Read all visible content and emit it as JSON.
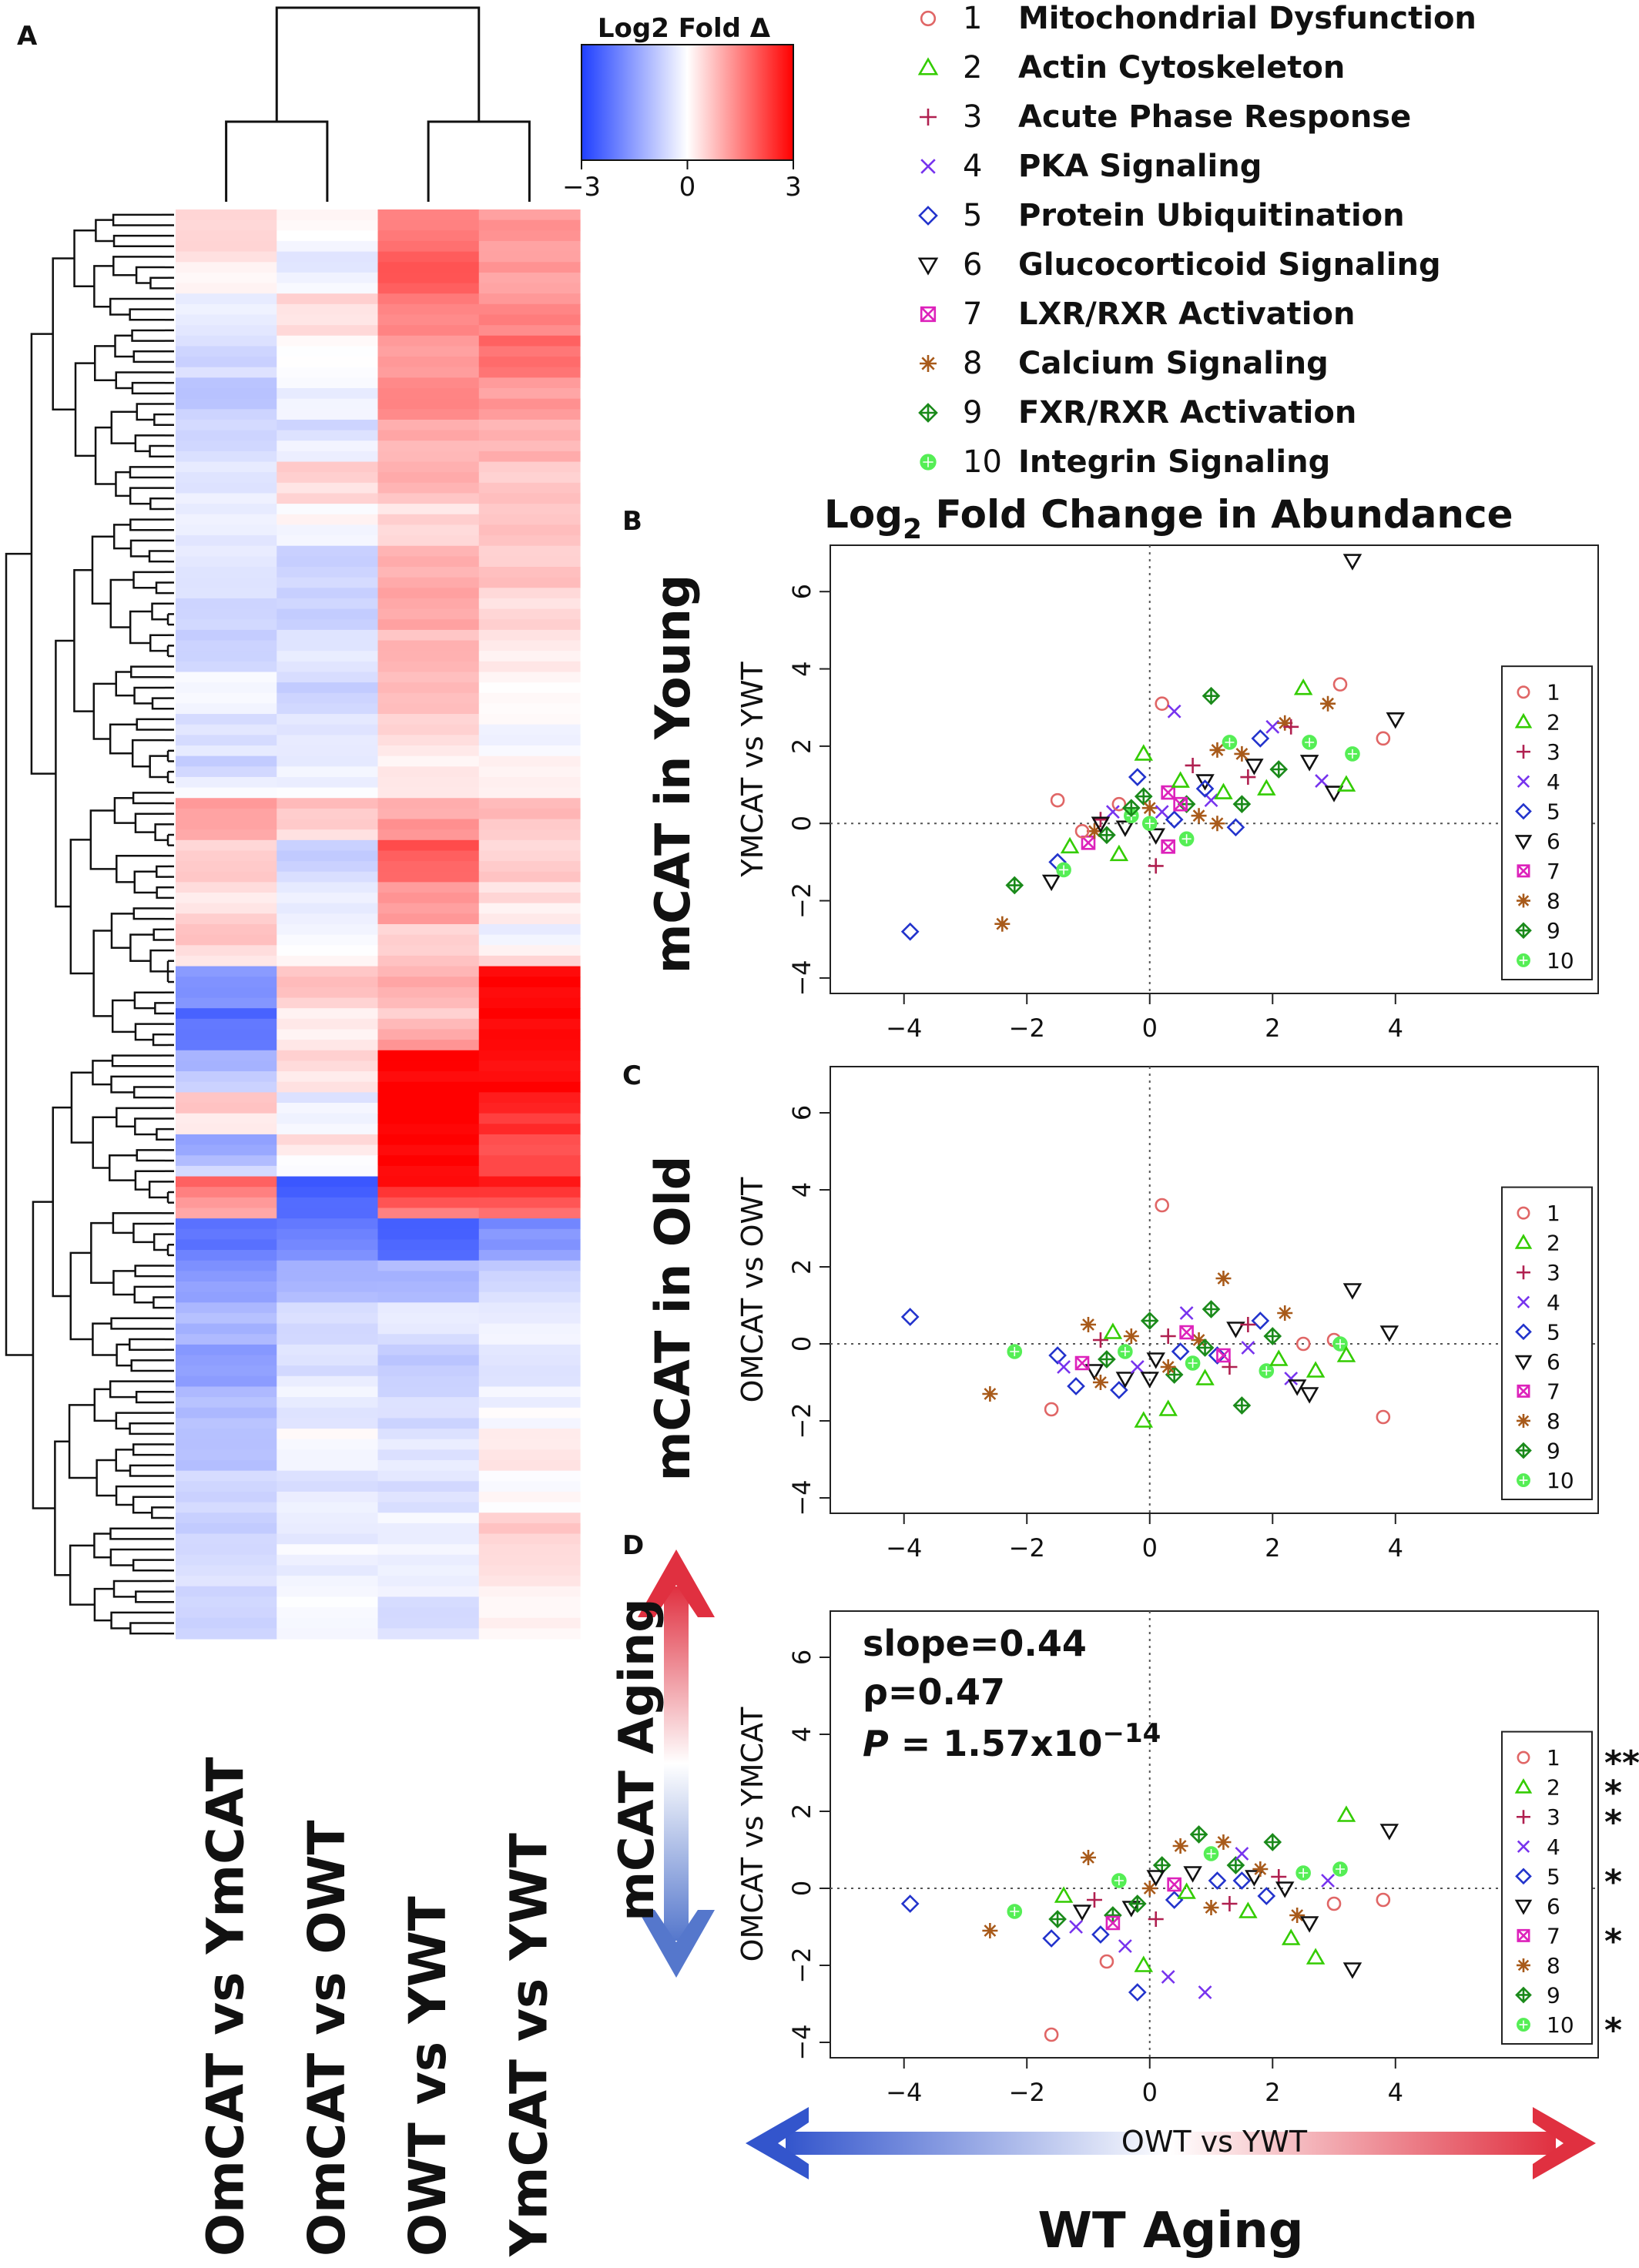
{
  "chart_data": [
    {
      "panel": "A",
      "type": "heatmap",
      "panel_label": "A",
      "colorbar": {
        "title": "Log2 Fold Δ",
        "ticks": [
          -3,
          0,
          3
        ],
        "tick_labels": [
          "−3",
          "0",
          "3"
        ],
        "low_color": "#1f3fff",
        "mid_color": "#ffffff",
        "high_color": "#ff0000"
      },
      "columns": [
        "OmCAT vs YmCAT",
        "OmCAT vs OWT",
        "OWT vs YWT",
        "YmCAT vs YWT"
      ],
      "column_dendrogram": "columns 1-2 cluster, columns 3-4 cluster",
      "row_blocks": [
        [
          0.5,
          0.1,
          1.6,
          1.2
        ],
        [
          0.3,
          -0.3,
          1.9,
          1.1
        ],
        [
          -0.2,
          0.4,
          1.6,
          1.3
        ],
        [
          -0.5,
          0.1,
          1.1,
          1.8
        ],
        [
          -0.9,
          -0.2,
          1.4,
          1.2
        ],
        [
          -0.6,
          -0.5,
          1.0,
          0.9
        ],
        [
          -0.3,
          0.5,
          0.9,
          0.6
        ],
        [
          -0.2,
          0.1,
          0.4,
          0.8
        ],
        [
          -0.4,
          -0.6,
          1.0,
          0.7
        ],
        [
          -0.5,
          -0.8,
          1.2,
          0.5
        ],
        [
          -0.8,
          -0.4,
          0.8,
          0.2
        ],
        [
          -0.1,
          -0.7,
          0.7,
          0.0
        ],
        [
          -0.4,
          -0.3,
          0.5,
          -0.1
        ],
        [
          -0.7,
          -0.4,
          0.2,
          0.1
        ],
        [
          1.2,
          0.9,
          1.0,
          0.8
        ],
        [
          0.6,
          -0.8,
          2.0,
          0.6
        ],
        [
          0.3,
          -0.3,
          1.3,
          0.4
        ],
        [
          0.8,
          -0.2,
          0.6,
          -0.4
        ],
        [
          -1.6,
          0.7,
          1.0,
          3.0
        ],
        [
          -2.3,
          0.2,
          0.6,
          3.0
        ],
        [
          -1.2,
          0.5,
          3.0,
          3.0
        ],
        [
          0.8,
          -0.3,
          3.0,
          2.5
        ],
        [
          -1.5,
          0.6,
          3.0,
          2.0
        ],
        [
          2.0,
          -2.5,
          3.0,
          2.8
        ],
        [
          -2.2,
          -2.0,
          -2.6,
          -1.8
        ],
        [
          -1.6,
          -1.2,
          -1.1,
          -0.7
        ],
        [
          -1.1,
          -0.6,
          -0.4,
          -0.2
        ],
        [
          -1.5,
          -0.5,
          -0.8,
          -0.4
        ],
        [
          -1.0,
          -0.3,
          -0.6,
          -0.2
        ],
        [
          -0.9,
          -0.1,
          -0.3,
          0.4
        ],
        [
          -0.7,
          -0.4,
          -0.5,
          -0.1
        ],
        [
          -0.8,
          -0.2,
          -0.2,
          0.6
        ],
        [
          -0.5,
          -0.3,
          -0.3,
          0.3
        ],
        [
          -0.6,
          0.0,
          -0.5,
          0.2
        ]
      ]
    },
    {
      "panel": "B",
      "type": "scatter",
      "panel_label": "B",
      "header": "Log",
      "header_sub": "2",
      "header_rest": " Fold Change in Abundance",
      "side_title": "mCAT in Young",
      "ylabel": "YMCAT vs YWT",
      "xlim": [
        -5.2,
        7.3
      ],
      "ylim": [
        -4.4,
        7.2
      ],
      "xticks": [
        -4,
        -2,
        0,
        2,
        4
      ],
      "yticks": [
        -4,
        -2,
        0,
        2,
        4,
        6
      ],
      "points": [
        [
          -3.9,
          -2.8,
          5
        ],
        [
          -2.4,
          -2.6,
          8
        ],
        [
          -2.2,
          -1.6,
          9
        ],
        [
          -1.6,
          -1.5,
          6
        ],
        [
          -1.5,
          -1.0,
          5
        ],
        [
          -1.4,
          -1.2,
          10
        ],
        [
          -1.5,
          0.6,
          1
        ],
        [
          -1.3,
          -0.6,
          2
        ],
        [
          -1.0,
          -0.5,
          7
        ],
        [
          -0.9,
          -0.2,
          8
        ],
        [
          -0.8,
          0.1,
          3
        ],
        [
          -0.7,
          -0.3,
          9
        ],
        [
          -0.6,
          0.3,
          4
        ],
        [
          -0.5,
          0.5,
          1
        ],
        [
          -0.4,
          -0.1,
          6
        ],
        [
          -0.3,
          0.2,
          10
        ],
        [
          -0.2,
          1.2,
          5
        ],
        [
          -0.1,
          0.7,
          9
        ],
        [
          -0.1,
          1.8,
          2
        ],
        [
          0.0,
          0.4,
          8
        ],
        [
          0.1,
          -1.1,
          3
        ],
        [
          0.1,
          -0.3,
          6
        ],
        [
          0.2,
          0.3,
          4
        ],
        [
          0.2,
          3.1,
          1
        ],
        [
          0.3,
          0.8,
          7
        ],
        [
          0.4,
          0.1,
          5
        ],
        [
          0.4,
          2.9,
          4
        ],
        [
          0.5,
          1.1,
          2
        ],
        [
          0.6,
          0.5,
          9
        ],
        [
          0.6,
          -0.4,
          10
        ],
        [
          0.7,
          1.5,
          3
        ],
        [
          0.8,
          0.2,
          8
        ],
        [
          0.9,
          1.1,
          6
        ],
        [
          1.0,
          3.3,
          9
        ],
        [
          1.0,
          0.6,
          4
        ],
        [
          1.1,
          1.9,
          8
        ],
        [
          1.2,
          0.8,
          2
        ],
        [
          1.3,
          2.1,
          10
        ],
        [
          1.4,
          -0.1,
          5
        ],
        [
          1.5,
          0.5,
          9
        ],
        [
          1.6,
          1.2,
          3
        ],
        [
          1.7,
          1.5,
          6
        ],
        [
          1.8,
          2.2,
          5
        ],
        [
          1.9,
          0.9,
          2
        ],
        [
          2.0,
          2.5,
          4
        ],
        [
          2.1,
          1.4,
          9
        ],
        [
          2.2,
          2.6,
          8
        ],
        [
          2.3,
          2.5,
          3
        ],
        [
          2.5,
          3.5,
          2
        ],
        [
          2.6,
          1.6,
          6
        ],
        [
          2.6,
          2.1,
          10
        ],
        [
          2.8,
          1.1,
          4
        ],
        [
          2.9,
          3.1,
          8
        ],
        [
          3.0,
          0.8,
          6
        ],
        [
          3.1,
          3.6,
          1
        ],
        [
          3.2,
          1.0,
          2
        ],
        [
          3.3,
          1.8,
          10
        ],
        [
          3.3,
          6.8,
          6
        ],
        [
          3.8,
          2.2,
          1
        ],
        [
          4.0,
          2.7,
          6
        ],
        [
          -1.1,
          -0.2,
          1
        ],
        [
          -0.5,
          -0.8,
          2
        ],
        [
          0.3,
          -0.6,
          7
        ],
        [
          1.1,
          0.0,
          8
        ],
        [
          -0.8,
          0.0,
          6
        ],
        [
          0.5,
          0.5,
          7
        ],
        [
          1.5,
          1.8,
          8
        ],
        [
          0.0,
          0.0,
          10
        ],
        [
          -0.3,
          0.4,
          9
        ],
        [
          0.9,
          0.9,
          5
        ]
      ],
      "legend": [
        "1",
        "2",
        "3",
        "4",
        "5",
        "6",
        "7",
        "8",
        "9",
        "10"
      ]
    },
    {
      "panel": "C",
      "type": "scatter",
      "panel_label": "C",
      "side_title": "mCAT in Old",
      "ylabel": "OMCAT vs OWT",
      "xlim": [
        -5.2,
        7.3
      ],
      "ylim": [
        -4.4,
        7.2
      ],
      "xticks": [
        -4,
        -2,
        0,
        2,
        4
      ],
      "yticks": [
        -4,
        -2,
        0,
        2,
        4,
        6
      ],
      "points": [
        [
          -3.9,
          0.7,
          5
        ],
        [
          -2.6,
          -1.3,
          8
        ],
        [
          -2.2,
          -0.2,
          10
        ],
        [
          -1.6,
          -1.7,
          1
        ],
        [
          -1.5,
          -0.3,
          5
        ],
        [
          -1.4,
          -0.6,
          4
        ],
        [
          -1.2,
          -1.1,
          5
        ],
        [
          -1.0,
          0.5,
          8
        ],
        [
          -0.9,
          -0.7,
          6
        ],
        [
          -0.8,
          0.1,
          3
        ],
        [
          -0.7,
          -0.4,
          9
        ],
        [
          -0.6,
          0.3,
          2
        ],
        [
          -0.5,
          -1.2,
          5
        ],
        [
          -0.4,
          -0.9,
          6
        ],
        [
          -0.3,
          0.2,
          8
        ],
        [
          -0.2,
          -0.6,
          4
        ],
        [
          -0.1,
          -2.0,
          2
        ],
        [
          0.0,
          0.6,
          9
        ],
        [
          0.1,
          -0.4,
          6
        ],
        [
          0.2,
          3.6,
          1
        ],
        [
          0.3,
          -1.7,
          2
        ],
        [
          0.3,
          0.2,
          3
        ],
        [
          0.4,
          -0.8,
          9
        ],
        [
          0.5,
          -0.2,
          5
        ],
        [
          0.6,
          0.8,
          4
        ],
        [
          0.7,
          -0.5,
          10
        ],
        [
          0.8,
          0.1,
          8
        ],
        [
          0.9,
          -0.9,
          2
        ],
        [
          1.0,
          0.9,
          9
        ],
        [
          1.1,
          -0.3,
          5
        ],
        [
          1.2,
          1.7,
          8
        ],
        [
          1.3,
          -0.6,
          3
        ],
        [
          1.4,
          0.4,
          6
        ],
        [
          1.5,
          -1.6,
          9
        ],
        [
          1.6,
          -0.1,
          4
        ],
        [
          1.8,
          0.6,
          5
        ],
        [
          1.9,
          -0.7,
          10
        ],
        [
          2.0,
          0.2,
          9
        ],
        [
          2.1,
          -0.4,
          2
        ],
        [
          2.2,
          0.8,
          8
        ],
        [
          2.3,
          -0.9,
          4
        ],
        [
          2.4,
          -1.1,
          6
        ],
        [
          2.5,
          0.0,
          1
        ],
        [
          2.6,
          -1.3,
          6
        ],
        [
          3.0,
          0.1,
          1
        ],
        [
          3.1,
          0.0,
          10
        ],
        [
          3.2,
          -0.3,
          2
        ],
        [
          3.3,
          1.4,
          6
        ],
        [
          3.8,
          -1.9,
          1
        ],
        [
          3.9,
          0.3,
          6
        ],
        [
          -1.1,
          -0.5,
          7
        ],
        [
          0.0,
          -0.9,
          6
        ],
        [
          0.6,
          0.3,
          7
        ],
        [
          1.2,
          -0.3,
          7
        ],
        [
          -0.4,
          -0.2,
          10
        ],
        [
          0.3,
          -0.6,
          8
        ],
        [
          -0.8,
          -1.0,
          8
        ],
        [
          1.6,
          0.5,
          3
        ],
        [
          2.7,
          -0.7,
          2
        ],
        [
          0.9,
          -0.1,
          9
        ]
      ],
      "legend": [
        "1",
        "2",
        "3",
        "4",
        "5",
        "6",
        "7",
        "8",
        "9",
        "10"
      ]
    },
    {
      "panel": "D",
      "type": "scatter",
      "panel_label": "D",
      "side_title": "mCAT Aging",
      "bottom_title": "WT Aging",
      "ylabel": "OMCAT vs YMCAT",
      "xlabel": "OWT vs YWT",
      "xlim": [
        -5.2,
        7.3
      ],
      "ylim": [
        -4.4,
        7.2
      ],
      "xticks": [
        -4,
        -2,
        0,
        2,
        4
      ],
      "yticks": [
        -4,
        -2,
        0,
        2,
        4,
        6
      ],
      "stats": {
        "slope_text": "slope=0.44",
        "rho_text": "ρ=0.47",
        "p_label": "P",
        "p_text": " = 1.57x10",
        "p_exp": "−14"
      },
      "points": [
        [
          -3.9,
          -0.4,
          5
        ],
        [
          -2.6,
          -1.1,
          8
        ],
        [
          -2.2,
          -0.6,
          10
        ],
        [
          -1.6,
          -3.8,
          1
        ],
        [
          -1.6,
          -1.3,
          5
        ],
        [
          -1.5,
          -0.8,
          9
        ],
        [
          -1.4,
          -0.2,
          2
        ],
        [
          -1.2,
          -1.0,
          4
        ],
        [
          -1.1,
          -0.6,
          6
        ],
        [
          -1.0,
          0.8,
          8
        ],
        [
          -0.9,
          -0.3,
          3
        ],
        [
          -0.8,
          -1.2,
          5
        ],
        [
          -0.7,
          -1.9,
          1
        ],
        [
          -0.6,
          -0.7,
          9
        ],
        [
          -0.5,
          0.2,
          10
        ],
        [
          -0.4,
          -1.5,
          4
        ],
        [
          -0.3,
          -0.5,
          6
        ],
        [
          -0.2,
          -2.7,
          5
        ],
        [
          -0.1,
          -2.0,
          2
        ],
        [
          0.0,
          0.0,
          8
        ],
        [
          0.1,
          -0.8,
          3
        ],
        [
          0.2,
          0.6,
          9
        ],
        [
          0.3,
          -2.3,
          4
        ],
        [
          0.4,
          -0.3,
          5
        ],
        [
          0.5,
          1.1,
          8
        ],
        [
          0.6,
          -0.1,
          2
        ],
        [
          0.7,
          0.4,
          6
        ],
        [
          0.8,
          1.4,
          9
        ],
        [
          0.9,
          -2.7,
          4
        ],
        [
          1.0,
          0.9,
          10
        ],
        [
          1.1,
          0.2,
          5
        ],
        [
          1.2,
          1.2,
          8
        ],
        [
          1.3,
          -0.4,
          3
        ],
        [
          1.4,
          0.6,
          9
        ],
        [
          1.5,
          0.9,
          4
        ],
        [
          1.6,
          -0.6,
          2
        ],
        [
          1.7,
          0.3,
          6
        ],
        [
          1.8,
          0.5,
          8
        ],
        [
          1.9,
          -0.2,
          5
        ],
        [
          2.0,
          1.2,
          9
        ],
        [
          2.1,
          0.3,
          3
        ],
        [
          2.2,
          0.0,
          6
        ],
        [
          2.3,
          -1.3,
          2
        ],
        [
          2.4,
          -0.7,
          8
        ],
        [
          2.5,
          0.4,
          10
        ],
        [
          2.6,
          -0.9,
          6
        ],
        [
          2.7,
          -1.8,
          2
        ],
        [
          2.9,
          0.2,
          4
        ],
        [
          3.0,
          -0.4,
          1
        ],
        [
          3.1,
          0.5,
          10
        ],
        [
          3.2,
          1.9,
          2
        ],
        [
          3.3,
          -2.1,
          6
        ],
        [
          3.8,
          -0.3,
          1
        ],
        [
          3.9,
          1.5,
          6
        ],
        [
          -0.6,
          -0.9,
          7
        ],
        [
          0.4,
          0.1,
          7
        ],
        [
          1.0,
          -0.5,
          8
        ],
        [
          -0.2,
          -0.4,
          9
        ],
        [
          1.5,
          0.2,
          5
        ],
        [
          0.1,
          0.3,
          6
        ]
      ],
      "legend": [
        "1",
        "2",
        "3",
        "4",
        "5",
        "6",
        "7",
        "8",
        "9",
        "10"
      ],
      "legend_stars": [
        "**",
        "*",
        "*",
        "",
        "*",
        "",
        "*",
        "",
        "",
        "*"
      ]
    }
  ],
  "pathways": {
    "items": [
      {
        "num": "1",
        "label": "Mitochondrial Dysfunction"
      },
      {
        "num": "2",
        "label": "Actin Cytoskeleton"
      },
      {
        "num": "3",
        "label": "Acute Phase Response"
      },
      {
        "num": "4",
        "label": "PKA Signaling"
      },
      {
        "num": "5",
        "label": "Protein Ubiquitination"
      },
      {
        "num": "6",
        "label": "Glucocorticoid Signaling"
      },
      {
        "num": "7",
        "label": "LXR/RXR Activation"
      },
      {
        "num": "8",
        "label": "Calcium Signaling"
      },
      {
        "num": "9",
        "label": "FXR/RXR Activation"
      },
      {
        "num": "10",
        "label": "Integrin Signaling"
      }
    ],
    "marker_colors": [
      "#e06666",
      "#33cc00",
      "#b02050",
      "#7733ee",
      "#2233cc",
      "#111111",
      "#dd22bb",
      "#a85a1a",
      "#1a8a1a",
      "#55ee55"
    ],
    "marker_shapes": [
      "circle",
      "triangle-up",
      "plus",
      "cross",
      "diamond",
      "triangle-down",
      "boxed-x",
      "asterisk",
      "diamond-plus",
      "circle-plus"
    ]
  }
}
